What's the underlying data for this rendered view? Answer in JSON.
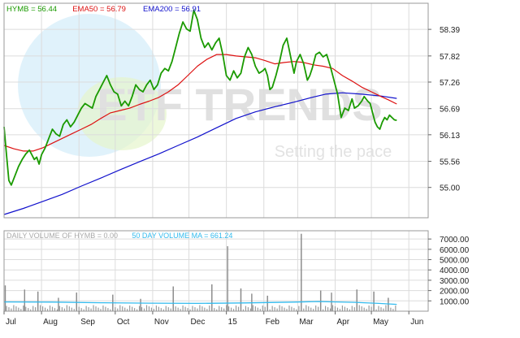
{
  "chart_data": [
    {
      "type": "line",
      "legend": [
        {
          "label": "HYMB = 56.44",
          "color": "#1a9a00"
        },
        {
          "label": "EMA50 = 56.79",
          "color": "#dd1111"
        },
        {
          "label": "EMA200 = 56.91",
          "color": "#1111cc"
        }
      ],
      "x_tick_labels": [
        "Jul",
        "Aug",
        "Sep",
        "Oct",
        "Nov",
        "Dec",
        "15",
        "Feb",
        "Mar",
        "Apr",
        "May",
        "Jun"
      ],
      "x_tick_days": [
        0,
        31,
        62,
        92,
        123,
        153,
        184,
        215,
        243,
        274,
        304,
        335
      ],
      "x_range_days": [
        0,
        351
      ],
      "y_tick_values": [
        55.0,
        55.56,
        56.13,
        56.69,
        57.26,
        57.82,
        58.39
      ],
      "y_tick_labels": [
        "55.00",
        "55.56",
        "56.13",
        "56.69",
        "57.26",
        "57.82",
        "58.39"
      ],
      "ylim": [
        54.35,
        58.95
      ],
      "grid": true,
      "watermark": {
        "brand": "ETF TRENDS",
        "tagline": "Setting the pace"
      },
      "series": [
        {
          "name": "HYMB",
          "color": "#1a9a00",
          "points": [
            [
              0,
              56.3
            ],
            [
              2,
              55.7
            ],
            [
              4,
              55.15
            ],
            [
              6,
              55.05
            ],
            [
              9,
              55.25
            ],
            [
              12,
              55.45
            ],
            [
              15,
              55.6
            ],
            [
              18,
              55.72
            ],
            [
              21,
              55.8
            ],
            [
              23,
              55.7
            ],
            [
              25,
              55.6
            ],
            [
              27,
              55.65
            ],
            [
              29,
              55.5
            ],
            [
              31,
              55.7
            ],
            [
              34,
              55.85
            ],
            [
              37,
              56.05
            ],
            [
              40,
              56.25
            ],
            [
              43,
              56.15
            ],
            [
              46,
              56.1
            ],
            [
              49,
              56.35
            ],
            [
              52,
              56.45
            ],
            [
              55,
              56.3
            ],
            [
              58,
              56.4
            ],
            [
              61,
              56.55
            ],
            [
              64,
              56.7
            ],
            [
              67,
              56.8
            ],
            [
              70,
              56.75
            ],
            [
              73,
              56.7
            ],
            [
              76,
              56.95
            ],
            [
              79,
              57.1
            ],
            [
              82,
              57.25
            ],
            [
              85,
              57.4
            ],
            [
              88,
              57.2
            ],
            [
              91,
              57.05
            ],
            [
              94,
              57.0
            ],
            [
              97,
              56.75
            ],
            [
              100,
              56.85
            ],
            [
              103,
              56.75
            ],
            [
              106,
              56.95
            ],
            [
              109,
              57.2
            ],
            [
              112,
              57.1
            ],
            [
              115,
              57.05
            ],
            [
              118,
              57.2
            ],
            [
              121,
              57.3
            ],
            [
              124,
              57.1
            ],
            [
              127,
              57.2
            ],
            [
              130,
              57.45
            ],
            [
              133,
              57.55
            ],
            [
              136,
              57.5
            ],
            [
              139,
              57.7
            ],
            [
              142,
              58.0
            ],
            [
              145,
              58.3
            ],
            [
              148,
              58.55
            ],
            [
              151,
              58.4
            ],
            [
              154,
              58.35
            ],
            [
              157,
              58.8
            ],
            [
              160,
              58.6
            ],
            [
              163,
              58.2
            ],
            [
              166,
              58.0
            ],
            [
              169,
              58.1
            ],
            [
              172,
              57.95
            ],
            [
              175,
              58.1
            ],
            [
              178,
              58.2
            ],
            [
              181,
              57.85
            ],
            [
              184,
              57.4
            ],
            [
              187,
              57.3
            ],
            [
              190,
              57.5
            ],
            [
              193,
              57.35
            ],
            [
              196,
              57.45
            ],
            [
              199,
              57.8
            ],
            [
              202,
              58.0
            ],
            [
              205,
              57.85
            ],
            [
              208,
              57.6
            ],
            [
              211,
              57.45
            ],
            [
              214,
              57.5
            ],
            [
              216,
              57.55
            ],
            [
              218,
              57.4
            ],
            [
              220,
              57.1
            ],
            [
              222,
              57.15
            ],
            [
              225,
              57.4
            ],
            [
              228,
              57.7
            ],
            [
              231,
              58.05
            ],
            [
              234,
              58.2
            ],
            [
              236,
              57.95
            ],
            [
              238,
              57.7
            ],
            [
              240,
              57.45
            ],
            [
              242,
              57.7
            ],
            [
              245,
              57.85
            ],
            [
              248,
              57.65
            ],
            [
              251,
              57.3
            ],
            [
              253,
              57.4
            ],
            [
              255,
              57.55
            ],
            [
              258,
              57.85
            ],
            [
              261,
              57.9
            ],
            [
              264,
              57.8
            ],
            [
              267,
              57.85
            ],
            [
              270,
              57.6
            ],
            [
              273,
              57.3
            ],
            [
              276,
              57.0
            ],
            [
              279,
              56.5
            ],
            [
              282,
              56.7
            ],
            [
              285,
              56.65
            ],
            [
              288,
              56.9
            ],
            [
              290,
              56.7
            ],
            [
              293,
              56.75
            ],
            [
              296,
              56.85
            ],
            [
              298,
              56.95
            ],
            [
              301,
              56.85
            ],
            [
              303,
              56.8
            ],
            [
              305,
              56.6
            ],
            [
              307,
              56.4
            ],
            [
              309,
              56.3
            ],
            [
              311,
              56.25
            ],
            [
              313,
              56.4
            ],
            [
              315,
              56.5
            ],
            [
              317,
              56.45
            ],
            [
              319,
              56.55
            ],
            [
              321,
              56.5
            ],
            [
              323,
              56.45
            ],
            [
              325,
              56.44
            ]
          ]
        },
        {
          "name": "EMA50",
          "color": "#dd1111",
          "points": [
            [
              0,
              55.9
            ],
            [
              8,
              55.83
            ],
            [
              16,
              55.78
            ],
            [
              24,
              55.78
            ],
            [
              32,
              55.85
            ],
            [
              40,
              55.95
            ],
            [
              48,
              56.05
            ],
            [
              56,
              56.15
            ],
            [
              64,
              56.25
            ],
            [
              72,
              56.35
            ],
            [
              80,
              56.48
            ],
            [
              88,
              56.6
            ],
            [
              96,
              56.65
            ],
            [
              104,
              56.7
            ],
            [
              112,
              56.78
            ],
            [
              120,
              56.85
            ],
            [
              128,
              56.93
            ],
            [
              136,
              57.05
            ],
            [
              144,
              57.2
            ],
            [
              152,
              57.4
            ],
            [
              160,
              57.6
            ],
            [
              168,
              57.75
            ],
            [
              176,
              57.85
            ],
            [
              184,
              57.85
            ],
            [
              192,
              57.82
            ],
            [
              200,
              57.8
            ],
            [
              208,
              57.78
            ],
            [
              216,
              57.72
            ],
            [
              224,
              57.65
            ],
            [
              232,
              57.68
            ],
            [
              240,
              57.7
            ],
            [
              248,
              57.68
            ],
            [
              256,
              57.63
            ],
            [
              264,
              57.6
            ],
            [
              272,
              57.55
            ],
            [
              280,
              57.4
            ],
            [
              288,
              57.28
            ],
            [
              296,
              57.15
            ],
            [
              304,
              57.05
            ],
            [
              312,
              56.95
            ],
            [
              318,
              56.88
            ],
            [
              325,
              56.79
            ]
          ]
        },
        {
          "name": "EMA200",
          "color": "#1111cc",
          "points": [
            [
              0,
              54.42
            ],
            [
              16,
              54.55
            ],
            [
              32,
              54.7
            ],
            [
              48,
              54.85
            ],
            [
              64,
              55.03
            ],
            [
              80,
              55.2
            ],
            [
              96,
              55.38
            ],
            [
              112,
              55.55
            ],
            [
              128,
              55.72
            ],
            [
              144,
              55.9
            ],
            [
              160,
              56.08
            ],
            [
              176,
              56.28
            ],
            [
              192,
              56.48
            ],
            [
              208,
              56.62
            ],
            [
              224,
              56.73
            ],
            [
              240,
              56.83
            ],
            [
              256,
              56.94
            ],
            [
              266,
              57.0
            ],
            [
              280,
              57.03
            ],
            [
              296,
              57.0
            ],
            [
              312,
              56.96
            ],
            [
              325,
              56.91
            ]
          ]
        }
      ]
    },
    {
      "type": "bar",
      "legend": [
        {
          "label": "DAILY VOLUME OF HYMB = 0.00",
          "color": "#aaaaaa"
        },
        {
          "label": "50 DAY VOLUME MA = 661.24",
          "color": "#33bbee"
        }
      ],
      "y_tick_values": [
        1000,
        2000,
        3000,
        4000,
        5000,
        6000,
        7000
      ],
      "y_tick_labels": [
        "1000.00",
        "2000.00",
        "3000.00",
        "4000.00",
        "5000.00",
        "6000.00",
        "7000.00"
      ],
      "ylim": [
        0,
        7800
      ],
      "grid": true,
      "volume_spikes": [
        [
          1,
          2500
        ],
        [
          17,
          2100
        ],
        [
          28,
          1900
        ],
        [
          45,
          1300
        ],
        [
          60,
          1800
        ],
        [
          90,
          1600
        ],
        [
          113,
          1200
        ],
        [
          140,
          2400
        ],
        [
          172,
          2600
        ],
        [
          185,
          6300
        ],
        [
          196,
          2200
        ],
        [
          205,
          1700
        ],
        [
          218,
          1500
        ],
        [
          246,
          7500
        ],
        [
          262,
          2000
        ],
        [
          271,
          1800
        ],
        [
          292,
          2100
        ],
        [
          306,
          1900
        ],
        [
          318,
          1300
        ]
      ],
      "volume_baseline": 450,
      "ma_series": {
        "name": "50 DAY VOLUME MA",
        "color": "#33bbee",
        "points": [
          [
            0,
            900
          ],
          [
            40,
            880
          ],
          [
            80,
            820
          ],
          [
            120,
            780
          ],
          [
            160,
            760
          ],
          [
            200,
            800
          ],
          [
            240,
            880
          ],
          [
            260,
            940
          ],
          [
            290,
            860
          ],
          [
            310,
            760
          ],
          [
            325,
            661
          ]
        ]
      }
    }
  ]
}
